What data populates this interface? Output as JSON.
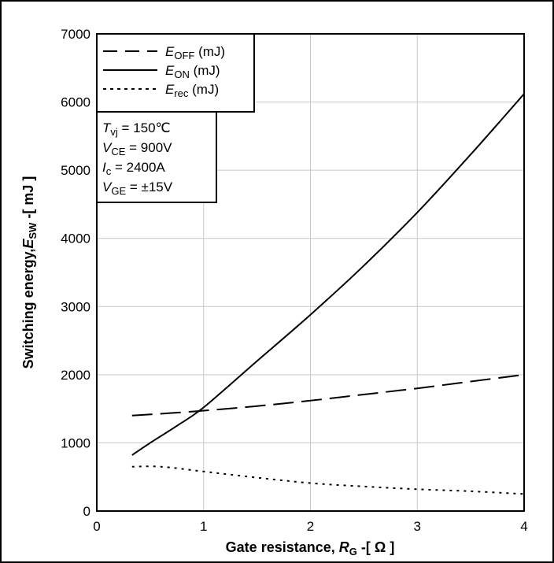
{
  "chart_data": {
    "type": "line",
    "title": "",
    "xlabel": {
      "main": "Gate resistance, ",
      "symbol": "R",
      "sub": "G",
      "unit": " -[ Ω ]"
    },
    "ylabel": {
      "main": "Switching energy,",
      "symbol": "E",
      "sub": "SW",
      "unit": " -[ mJ ]"
    },
    "xlim": [
      0,
      4
    ],
    "ylim": [
      0,
      7000
    ],
    "xticks": [
      "0",
      "1",
      "2",
      "3",
      "4"
    ],
    "yticks": [
      "0",
      "1000",
      "2000",
      "3000",
      "4000",
      "5000",
      "6000",
      "7000"
    ],
    "grid": true,
    "legend_position": "top-left",
    "series": [
      {
        "name": "E_OFF (mJ)",
        "label_symbol": "E",
        "label_sub": "OFF",
        "label_unit": " (mJ)",
        "style": "dashed",
        "x": [
          0.33,
          0.9,
          1.5,
          2.0,
          2.5,
          3.0,
          3.5,
          4.0
        ],
        "y": [
          1400,
          1460,
          1540,
          1620,
          1710,
          1800,
          1900,
          2000
        ]
      },
      {
        "name": "E_ON (mJ)",
        "label_symbol": "E",
        "label_sub": "ON",
        "label_unit": " (mJ)",
        "style": "solid",
        "x": [
          0.33,
          0.5,
          0.75,
          1.0,
          1.5,
          2.0,
          2.5,
          3.0,
          3.5,
          4.0
        ],
        "y": [
          820,
          1000,
          1250,
          1520,
          2200,
          2880,
          3600,
          4380,
          5230,
          6120
        ]
      },
      {
        "name": "E_rec (mJ)",
        "label_symbol": "E",
        "label_sub": "rec",
        "label_unit": " (mJ)",
        "style": "dotted",
        "x": [
          0.33,
          0.6,
          1.0,
          1.5,
          2.0,
          2.5,
          3.0,
          3.5,
          4.0
        ],
        "y": [
          650,
          650,
          580,
          490,
          410,
          360,
          320,
          290,
          250
        ]
      }
    ],
    "conditions": [
      {
        "symbol": "T",
        "sub": "vj",
        "value": " = 150℃"
      },
      {
        "symbol": "V",
        "sub": "CE",
        "value": " = 900V"
      },
      {
        "symbol": "I",
        "sub": "c",
        "value": " = 2400A"
      },
      {
        "symbol": "V",
        "sub": "GE",
        "value": " = ±15V"
      }
    ]
  }
}
